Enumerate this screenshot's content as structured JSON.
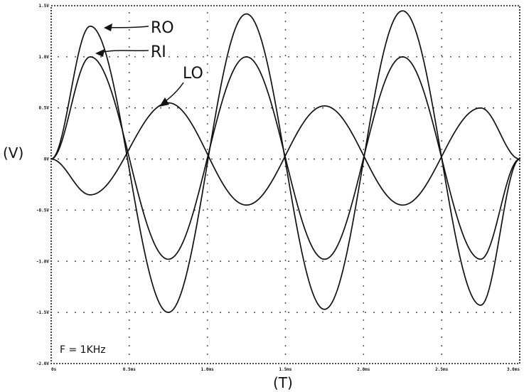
{
  "chart_data": {
    "type": "line",
    "xlabel": "(T)",
    "ylabel": "(V)",
    "annotation": "F = 1KHz",
    "x_ticks": [
      "0s",
      "0.5ms",
      "1.0ms",
      "1.5ms",
      "2.0ms",
      "2.5ms",
      "3.0ms"
    ],
    "y_ticks": [
      "1.5V",
      "1.0V",
      "0.5V",
      "0V",
      "-0.5V",
      "-1.0V",
      "-1.5V",
      "-2.0V"
    ],
    "xlim": [
      0,
      3.0
    ],
    "ylim": [
      -2.0,
      1.5
    ],
    "x_unit": "ms",
    "y_unit": "V",
    "grid": true,
    "series": [
      {
        "name": "RO",
        "x": [
          0,
          0.25,
          0.75,
          1.25,
          1.75,
          2.25,
          2.75,
          3.0
        ],
        "values": [
          0,
          1.3,
          -1.5,
          1.42,
          -1.47,
          1.45,
          -1.43,
          0
        ]
      },
      {
        "name": "RI",
        "x": [
          0,
          0.25,
          0.75,
          1.25,
          1.75,
          2.25,
          2.75,
          3.0
        ],
        "values": [
          0,
          1.0,
          -0.98,
          1.0,
          -0.98,
          1.0,
          -0.98,
          0
        ]
      },
      {
        "name": "LO",
        "x": [
          0,
          0.25,
          0.75,
          1.25,
          1.75,
          2.25,
          2.75,
          3.0
        ],
        "values": [
          0,
          -0.35,
          0.55,
          -0.45,
          0.52,
          -0.45,
          0.5,
          0
        ]
      }
    ]
  }
}
